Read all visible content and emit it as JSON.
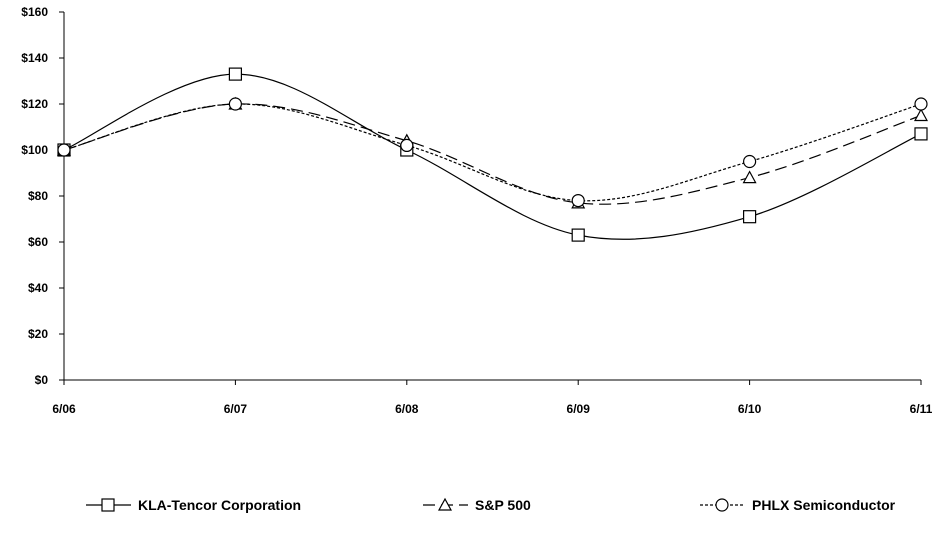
{
  "chart_data": {
    "type": "line",
    "title": "",
    "xlabel": "",
    "ylabel": "",
    "categories": [
      "6/06",
      "6/07",
      "6/08",
      "6/09",
      "6/10",
      "6/11"
    ],
    "ylim": [
      0,
      160
    ],
    "yticks": [
      "$0",
      "$20",
      "$40",
      "$60",
      "$80",
      "$100",
      "$120",
      "$140",
      "$160"
    ],
    "ytick_values": [
      0,
      20,
      40,
      60,
      80,
      100,
      120,
      140,
      160
    ],
    "grid": false,
    "legend_position": "bottom",
    "series": [
      {
        "name": "KLA-Tencor Corporation",
        "values": [
          100,
          133,
          100,
          63,
          71,
          107
        ],
        "marker": "square",
        "dash": "solid"
      },
      {
        "name": "S&P 500",
        "values": [
          100,
          120,
          104,
          77,
          88,
          115
        ],
        "marker": "triangle",
        "dash": "dashed"
      },
      {
        "name": "PHLX Semiconductor",
        "values": [
          100,
          120,
          102,
          78,
          95,
          120
        ],
        "marker": "circle",
        "dash": "dotted"
      }
    ]
  }
}
